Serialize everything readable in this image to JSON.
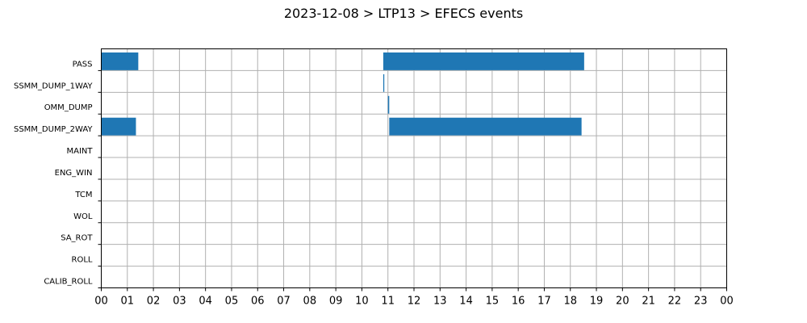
{
  "chart_data": {
    "type": "gantt",
    "title": "2023-12-08 > LTP13 > EFECS events",
    "xlabel": "",
    "ylabel": "",
    "x_unit": "hour",
    "xlim": [
      0,
      24
    ],
    "x_ticks": [
      "00",
      "01",
      "02",
      "03",
      "04",
      "05",
      "06",
      "07",
      "08",
      "09",
      "10",
      "11",
      "12",
      "13",
      "14",
      "15",
      "16",
      "17",
      "18",
      "19",
      "20",
      "21",
      "22",
      "23",
      "00"
    ],
    "grid": true,
    "bar_color": "#1f77b4",
    "categories": [
      "PASS",
      "SSMM_DUMP_1WAY",
      "OMM_DUMP",
      "SSMM_DUMP_2WAY",
      "MAINT",
      "ENG_WIN",
      "TCM",
      "WOL",
      "SA_ROT",
      "ROLL",
      "CALIB_ROLL"
    ],
    "events": [
      {
        "category": "PASS",
        "start": 0.0,
        "end": 1.42
      },
      {
        "category": "PASS",
        "start": 10.82,
        "end": 18.53
      },
      {
        "category": "SSMM_DUMP_1WAY",
        "start": 10.82,
        "end": 10.86
      },
      {
        "category": "OMM_DUMP",
        "start": 11.0,
        "end": 11.05
      },
      {
        "category": "SSMM_DUMP_2WAY",
        "start": 0.0,
        "end": 1.33
      },
      {
        "category": "SSMM_DUMP_2WAY",
        "start": 11.05,
        "end": 18.43
      }
    ]
  }
}
